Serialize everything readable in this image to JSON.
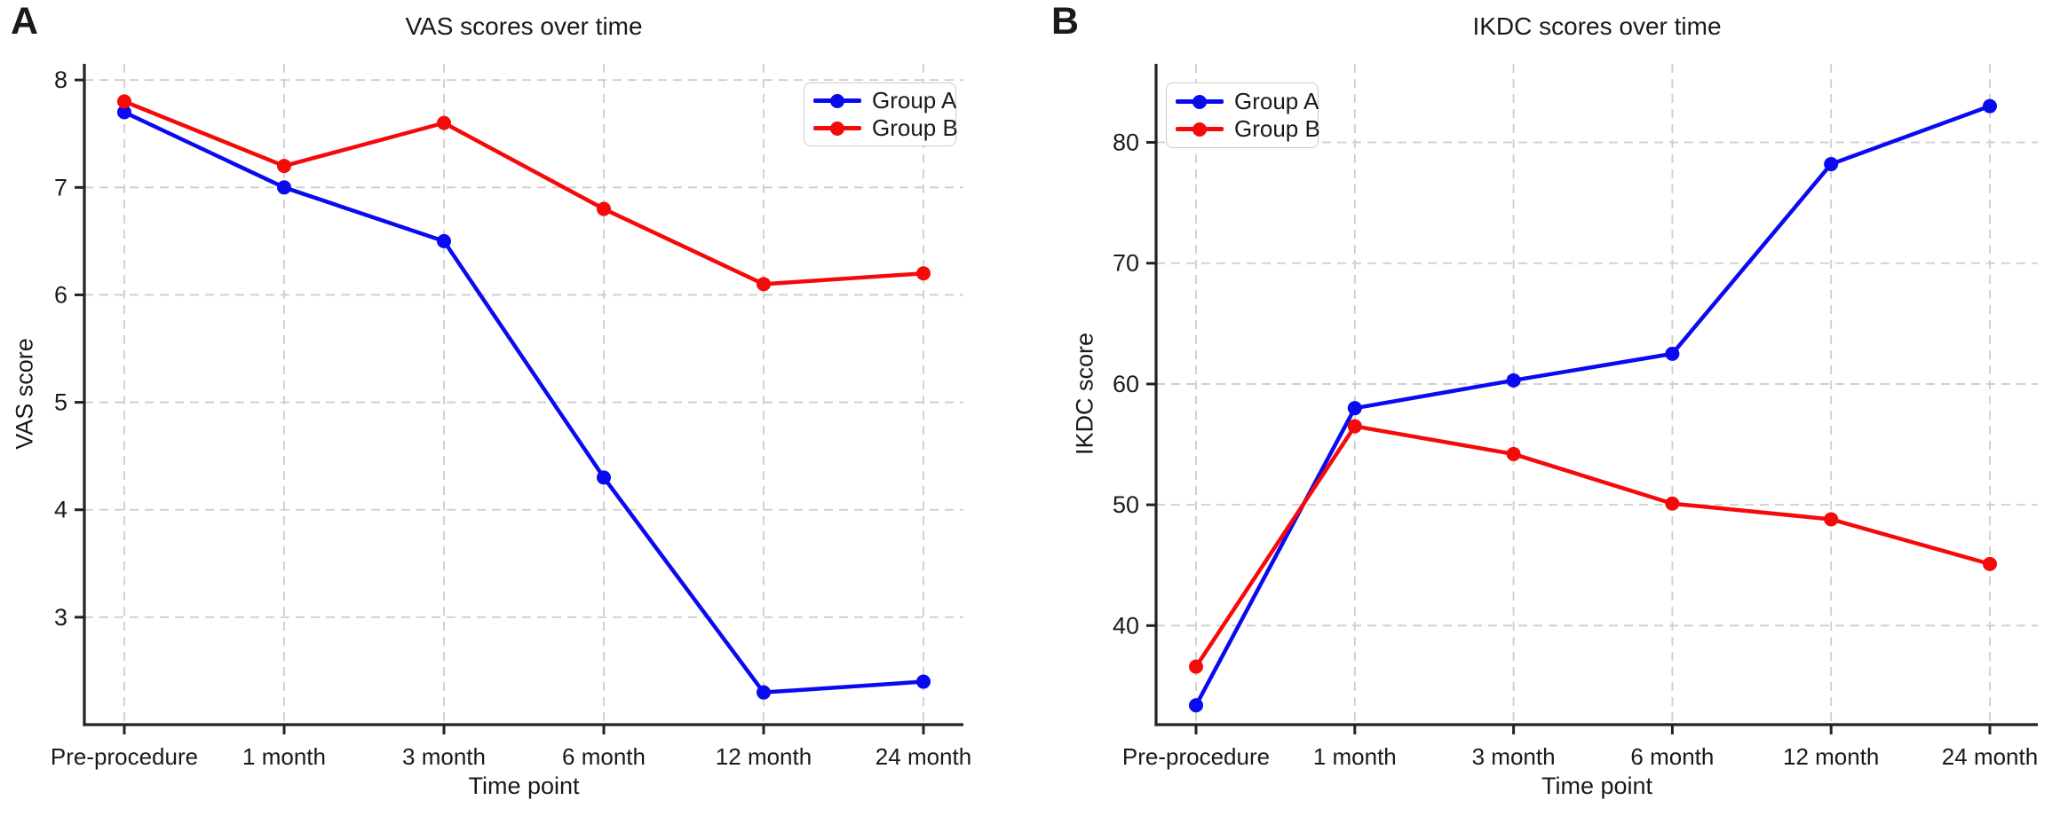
{
  "chart_data": [
    {
      "type": "line",
      "panel_label": "A",
      "title": "VAS scores over time",
      "xlabel": "Time point",
      "ylabel": "VAS score",
      "categories": [
        "Pre-procedure",
        "1 month",
        "3 month",
        "6 month",
        "12 month",
        "24 month"
      ],
      "yticks": [
        3,
        4,
        5,
        6,
        7,
        8
      ],
      "ylim": [
        2.0,
        8.15
      ],
      "grid": true,
      "legend_position": "upper right",
      "series": [
        {
          "name": "Group A",
          "color": "#0a0af0",
          "values": [
            7.7,
            7.0,
            6.5,
            4.3,
            2.3,
            2.4
          ]
        },
        {
          "name": "Group B",
          "color": "#f50a0a",
          "values": [
            7.8,
            7.2,
            7.6,
            6.8,
            6.1,
            6.2
          ]
        }
      ]
    },
    {
      "type": "line",
      "panel_label": "B",
      "title": "IKDC scores over time",
      "xlabel": "Time point",
      "ylabel": "IKDC score",
      "categories": [
        "Pre-procedure",
        "1 month",
        "3 month",
        "6 month",
        "12 month",
        "24 month"
      ],
      "yticks": [
        40,
        50,
        60,
        70,
        80
      ],
      "ylim": [
        31.8,
        86.5
      ],
      "grid": true,
      "legend_position": "upper left",
      "series": [
        {
          "name": "Group A",
          "color": "#0a0af0",
          "values": [
            33.4,
            58.0,
            60.3,
            62.5,
            78.2,
            83.0
          ]
        },
        {
          "name": "Group B",
          "color": "#f50a0a",
          "values": [
            36.6,
            56.5,
            54.2,
            50.1,
            48.8,
            45.1
          ]
        }
      ]
    }
  ]
}
